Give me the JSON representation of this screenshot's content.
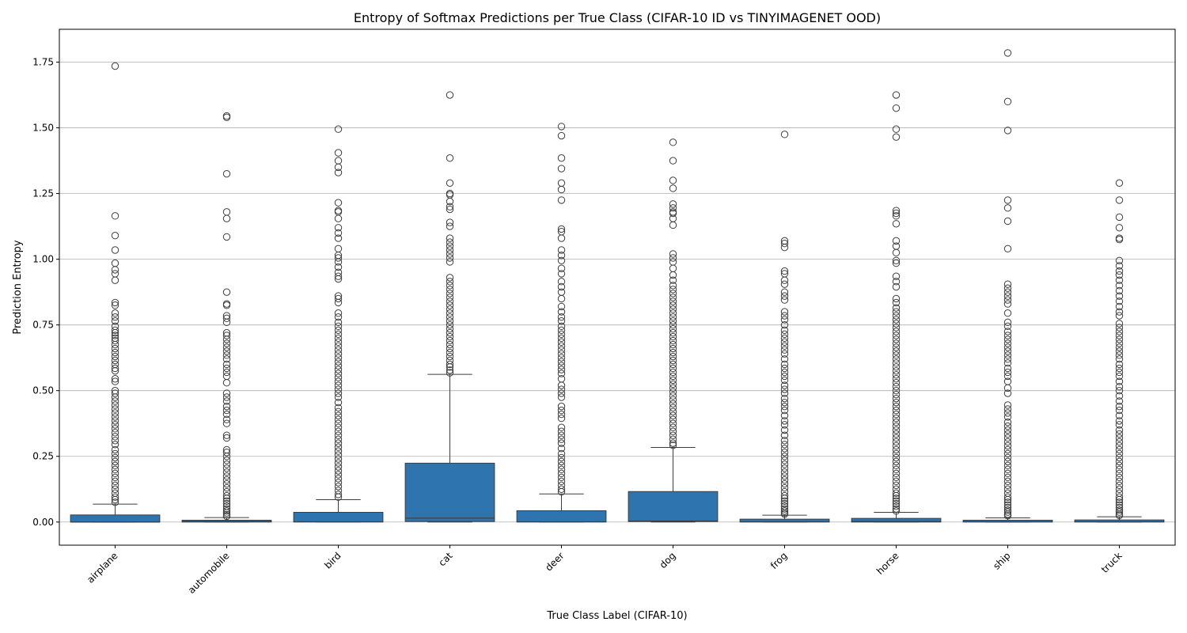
{
  "chart_data": {
    "type": "box",
    "title": "Entropy of Softmax Predictions per True Class (CIFAR-10 ID vs TINYIMAGENET OOD)",
    "xlabel": "True Class Label (CIFAR-10)",
    "ylabel": "Prediction Entropy",
    "ylim": [
      -0.088,
      1.875
    ],
    "yticks": [
      0.0,
      0.25,
      0.5,
      0.75,
      1.0,
      1.25,
      1.5,
      1.75
    ],
    "ytick_labels": [
      "0.00",
      "0.25",
      "0.50",
      "0.75",
      "1.00",
      "1.25",
      "1.50",
      "1.75"
    ],
    "grid": "horizontal",
    "box_color": "#2e75b0",
    "categories": [
      "airplane",
      "automobile",
      "bird",
      "cat",
      "deer",
      "dog",
      "frog",
      "horse",
      "ship",
      "truck"
    ],
    "boxes": [
      {
        "category": "airplane",
        "whislo": 0.0,
        "q1": 0.0,
        "med": 0.0,
        "q3": 0.027,
        "whishi": 0.068,
        "fliers": [
          1.735,
          1.165,
          1.09,
          1.035,
          0.985,
          0.96,
          0.945,
          0.92,
          0.835,
          0.825,
          0.795,
          0.78,
          0.765,
          0.745,
          0.73,
          0.72,
          0.71,
          0.7,
          0.69,
          0.675,
          0.66,
          0.645,
          0.63,
          0.615,
          0.6,
          0.585,
          0.575,
          0.545,
          0.535,
          0.5,
          0.49,
          0.475,
          0.46,
          0.445,
          0.43,
          0.415,
          0.4,
          0.385,
          0.37,
          0.355,
          0.34,
          0.325,
          0.31,
          0.295,
          0.275,
          0.26,
          0.245,
          0.23,
          0.215,
          0.2,
          0.185,
          0.17,
          0.155,
          0.14,
          0.125,
          0.11,
          0.095,
          0.085,
          0.075
        ]
      },
      {
        "category": "automobile",
        "whislo": 0.0,
        "q1": 0.0,
        "med": 0.002,
        "q3": 0.007,
        "whishi": 0.017,
        "fliers": [
          1.545,
          1.54,
          1.325,
          1.18,
          1.155,
          1.085,
          0.875,
          0.83,
          0.825,
          0.785,
          0.775,
          0.76,
          0.72,
          0.71,
          0.695,
          0.68,
          0.665,
          0.65,
          0.635,
          0.62,
          0.6,
          0.585,
          0.57,
          0.555,
          0.53,
          0.49,
          0.475,
          0.46,
          0.44,
          0.425,
          0.41,
          0.39,
          0.375,
          0.33,
          0.32,
          0.275,
          0.265,
          0.25,
          0.235,
          0.22,
          0.205,
          0.19,
          0.175,
          0.16,
          0.145,
          0.13,
          0.115,
          0.1,
          0.09,
          0.08,
          0.07,
          0.06,
          0.05,
          0.042,
          0.035,
          0.028,
          0.022
        ]
      },
      {
        "category": "bird",
        "whislo": 0.0,
        "q1": 0.0,
        "med": 0.001,
        "q3": 0.037,
        "whishi": 0.085,
        "fliers": [
          1.495,
          1.405,
          1.375,
          1.35,
          1.33,
          1.215,
          1.185,
          1.18,
          1.155,
          1.12,
          1.1,
          1.08,
          1.04,
          1.015,
          1.005,
          0.99,
          0.97,
          0.95,
          0.935,
          0.925,
          0.86,
          0.85,
          0.835,
          0.795,
          0.78,
          0.76,
          0.745,
          0.73,
          0.715,
          0.7,
          0.685,
          0.67,
          0.655,
          0.64,
          0.625,
          0.61,
          0.595,
          0.58,
          0.565,
          0.55,
          0.535,
          0.52,
          0.505,
          0.49,
          0.475,
          0.455,
          0.435,
          0.42,
          0.405,
          0.39,
          0.375,
          0.36,
          0.345,
          0.33,
          0.315,
          0.3,
          0.285,
          0.27,
          0.255,
          0.24,
          0.225,
          0.21,
          0.195,
          0.18,
          0.165,
          0.15,
          0.135,
          0.12,
          0.105,
          0.095
        ]
      },
      {
        "category": "cat",
        "whislo": 0.0,
        "q1": 0.002,
        "med": 0.015,
        "q3": 0.224,
        "whishi": 0.562,
        "fliers": [
          1.625,
          1.385,
          1.29,
          1.25,
          1.245,
          1.22,
          1.2,
          1.19,
          1.14,
          1.125,
          1.08,
          1.065,
          1.05,
          1.035,
          1.02,
          1.005,
          0.99,
          0.93,
          0.915,
          0.9,
          0.885,
          0.87,
          0.855,
          0.84,
          0.825,
          0.81,
          0.795,
          0.78,
          0.765,
          0.75,
          0.735,
          0.72,
          0.705,
          0.69,
          0.675,
          0.66,
          0.645,
          0.63,
          0.615,
          0.6,
          0.59,
          0.578,
          0.568
        ]
      },
      {
        "category": "deer",
        "whislo": 0.0,
        "q1": 0.0,
        "med": 0.001,
        "q3": 0.043,
        "whishi": 0.107,
        "fliers": [
          1.505,
          1.47,
          1.385,
          1.345,
          1.29,
          1.265,
          1.225,
          1.115,
          1.105,
          1.08,
          1.035,
          1.015,
          0.995,
          0.965,
          0.945,
          0.915,
          0.895,
          0.875,
          0.85,
          0.82,
          0.8,
          0.78,
          0.765,
          0.745,
          0.73,
          0.715,
          0.7,
          0.685,
          0.67,
          0.655,
          0.64,
          0.625,
          0.61,
          0.595,
          0.58,
          0.565,
          0.545,
          0.52,
          0.505,
          0.49,
          0.475,
          0.44,
          0.425,
          0.41,
          0.395,
          0.36,
          0.345,
          0.33,
          0.315,
          0.3,
          0.28,
          0.26,
          0.245,
          0.23,
          0.215,
          0.2,
          0.185,
          0.17,
          0.155,
          0.14,
          0.125,
          0.115
        ]
      },
      {
        "category": "dog",
        "whislo": 0.0,
        "q1": 0.002,
        "med": 0.004,
        "q3": 0.116,
        "whishi": 0.284,
        "fliers": [
          1.445,
          1.375,
          1.3,
          1.27,
          1.21,
          1.195,
          1.18,
          1.175,
          1.155,
          1.13,
          1.02,
          1.005,
          0.99,
          0.965,
          0.94,
          0.92,
          0.9,
          0.885,
          0.87,
          0.855,
          0.84,
          0.825,
          0.81,
          0.795,
          0.78,
          0.765,
          0.75,
          0.735,
          0.72,
          0.705,
          0.69,
          0.675,
          0.66,
          0.645,
          0.63,
          0.615,
          0.6,
          0.585,
          0.57,
          0.555,
          0.54,
          0.525,
          0.51,
          0.495,
          0.48,
          0.465,
          0.45,
          0.435,
          0.42,
          0.405,
          0.39,
          0.375,
          0.36,
          0.345,
          0.33,
          0.315,
          0.3,
          0.292
        ]
      },
      {
        "category": "frog",
        "whislo": 0.0,
        "q1": 0.0,
        "med": 0.001,
        "q3": 0.011,
        "whishi": 0.026,
        "fliers": [
          1.475,
          1.07,
          1.06,
          1.045,
          0.955,
          0.945,
          0.92,
          0.905,
          0.875,
          0.86,
          0.845,
          0.8,
          0.785,
          0.77,
          0.75,
          0.73,
          0.715,
          0.7,
          0.685,
          0.67,
          0.655,
          0.64,
          0.62,
          0.6,
          0.585,
          0.57,
          0.555,
          0.54,
          0.52,
          0.505,
          0.49,
          0.47,
          0.455,
          0.44,
          0.425,
          0.405,
          0.385,
          0.37,
          0.35,
          0.33,
          0.31,
          0.295,
          0.28,
          0.265,
          0.25,
          0.235,
          0.22,
          0.205,
          0.19,
          0.175,
          0.16,
          0.145,
          0.13,
          0.115,
          0.1,
          0.09,
          0.08,
          0.07,
          0.06,
          0.05,
          0.042,
          0.035,
          0.03
        ]
      },
      {
        "category": "horse",
        "whislo": 0.0,
        "q1": 0.0,
        "med": 0.002,
        "q3": 0.014,
        "whishi": 0.037,
        "fliers": [
          1.625,
          1.575,
          1.495,
          1.465,
          1.185,
          1.175,
          1.165,
          1.135,
          1.07,
          1.05,
          1.025,
          0.995,
          0.985,
          0.935,
          0.915,
          0.895,
          0.85,
          0.835,
          0.815,
          0.8,
          0.785,
          0.77,
          0.755,
          0.74,
          0.725,
          0.71,
          0.695,
          0.68,
          0.665,
          0.65,
          0.635,
          0.62,
          0.605,
          0.59,
          0.575,
          0.56,
          0.545,
          0.53,
          0.515,
          0.5,
          0.485,
          0.47,
          0.455,
          0.44,
          0.425,
          0.41,
          0.395,
          0.38,
          0.365,
          0.35,
          0.335,
          0.32,
          0.305,
          0.29,
          0.275,
          0.26,
          0.245,
          0.23,
          0.215,
          0.2,
          0.185,
          0.17,
          0.155,
          0.14,
          0.125,
          0.11,
          0.1,
          0.09,
          0.08,
          0.07,
          0.06,
          0.05,
          0.042
        ]
      },
      {
        "category": "ship",
        "whislo": 0.0,
        "q1": 0.0,
        "med": 0.001,
        "q3": 0.007,
        "whishi": 0.016,
        "fliers": [
          1.785,
          1.6,
          1.49,
          1.225,
          1.195,
          1.145,
          1.04,
          0.905,
          0.89,
          0.875,
          0.86,
          0.845,
          0.83,
          0.795,
          0.76,
          0.745,
          0.725,
          0.71,
          0.695,
          0.68,
          0.665,
          0.65,
          0.635,
          0.62,
          0.605,
          0.585,
          0.57,
          0.555,
          0.535,
          0.51,
          0.49,
          0.445,
          0.43,
          0.415,
          0.4,
          0.38,
          0.365,
          0.35,
          0.335,
          0.32,
          0.305,
          0.29,
          0.275,
          0.26,
          0.245,
          0.23,
          0.215,
          0.2,
          0.185,
          0.17,
          0.155,
          0.14,
          0.125,
          0.11,
          0.095,
          0.085,
          0.075,
          0.065,
          0.055,
          0.045,
          0.038,
          0.03,
          0.024
        ]
      },
      {
        "category": "truck",
        "whislo": 0.0,
        "q1": 0.0,
        "med": 0.001,
        "q3": 0.008,
        "whishi": 0.02,
        "fliers": [
          1.29,
          1.225,
          1.16,
          1.12,
          1.08,
          1.075,
          0.995,
          0.975,
          0.955,
          0.94,
          0.92,
          0.9,
          0.88,
          0.86,
          0.84,
          0.82,
          0.8,
          0.785,
          0.755,
          0.74,
          0.725,
          0.71,
          0.695,
          0.68,
          0.665,
          0.65,
          0.635,
          0.62,
          0.6,
          0.585,
          0.57,
          0.555,
          0.535,
          0.515,
          0.5,
          0.48,
          0.46,
          0.44,
          0.425,
          0.405,
          0.385,
          0.37,
          0.35,
          0.335,
          0.32,
          0.305,
          0.29,
          0.275,
          0.26,
          0.245,
          0.23,
          0.215,
          0.2,
          0.185,
          0.17,
          0.155,
          0.14,
          0.125,
          0.11,
          0.095,
          0.085,
          0.075,
          0.065,
          0.055,
          0.045,
          0.038,
          0.03,
          0.025
        ]
      }
    ]
  }
}
